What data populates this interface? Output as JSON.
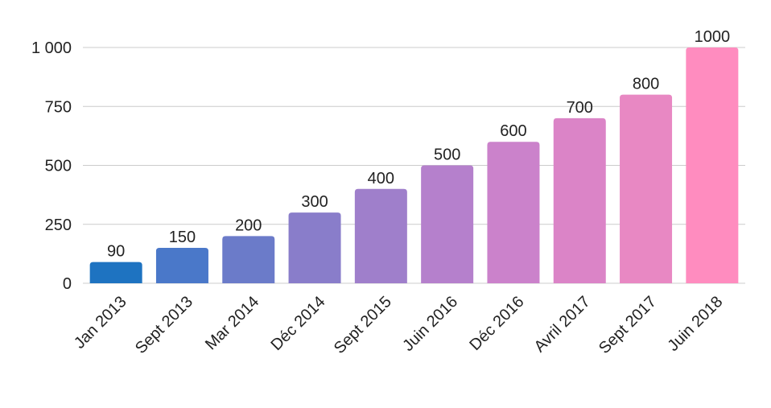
{
  "chart_data": {
    "type": "bar",
    "title": "",
    "xlabel": "",
    "ylabel": "",
    "categories": [
      "Jan 2013",
      "Sept 2013",
      "Mar 2014",
      "Déc 2014",
      "Sept 2015",
      "Juin 2016",
      "Déc 2016",
      "Avril 2017",
      "Sept 2017",
      "Juin 2018"
    ],
    "values": [
      90,
      150,
      200,
      300,
      400,
      500,
      600,
      700,
      800,
      1000
    ],
    "data_labels": [
      "90",
      "150",
      "200",
      "300",
      "400",
      "500",
      "600",
      "700",
      "800",
      "1000"
    ],
    "ylim": [
      0,
      1000
    ],
    "yticks": [
      0,
      250,
      500,
      750,
      1000
    ],
    "ytick_labels": [
      "0",
      "250",
      "500",
      "750",
      "1 000"
    ],
    "grid": true,
    "legend": "none",
    "bar_colors": [
      "#1e73c1",
      "#4a78c9",
      "#6b7bc9",
      "#897dca",
      "#9f7fcb",
      "#b580cc",
      "#cb82cb",
      "#db84c7",
      "#e888c3",
      "#ff8cbf"
    ]
  }
}
